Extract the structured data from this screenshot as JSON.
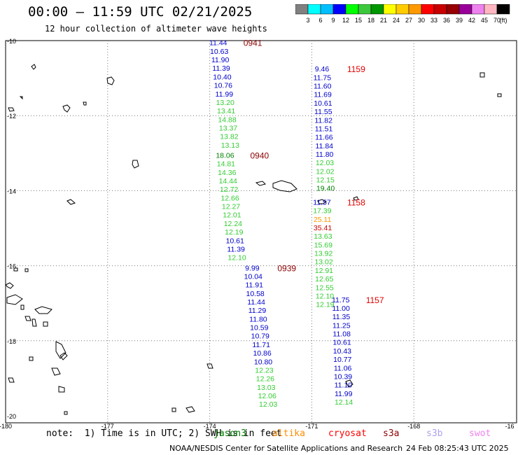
{
  "header": {
    "title": "00:00 – 11:59 UTC 02/21/2025",
    "subtitle": "12 hour collection of altimeter wave heights"
  },
  "colorbar": {
    "colors": [
      "#808080",
      "#00ffff",
      "#00bfff",
      "#0000ff",
      "#00ff00",
      "#3cc83c",
      "#009600",
      "#ffff00",
      "#ffcc00",
      "#ff9900",
      "#ff0000",
      "#c80000",
      "#960000",
      "#990099",
      "#ee82ee",
      "#ffb6c1",
      "#000000"
    ],
    "labels": [
      "3",
      "6",
      "9",
      "12",
      "15",
      "18",
      "21",
      "24",
      "27",
      "30",
      "33",
      "36",
      "39",
      "42",
      "45",
      "70",
      "(ft)"
    ]
  },
  "axes": {
    "lat_labels": [
      "-10",
      "-12",
      "-14",
      "-16",
      "-18",
      "-20"
    ],
    "lon_labels": [
      "-180",
      "-177",
      "-174",
      "-171",
      "-168",
      "-16"
    ]
  },
  "passes": [
    {
      "time": "0941",
      "color": "#8b0000",
      "lon": -173.75,
      "lat": -10.05,
      "values": [
        "11.44",
        "10.63",
        "11.90",
        "11.39",
        "10.40",
        "10.76",
        "11.99",
        "13.20",
        "13.41",
        "14.88",
        "13.37",
        "13.82",
        "13.13"
      ]
    },
    {
      "time": "0940",
      "color": "#8b0000",
      "lon": -173.55,
      "lat": -13.05,
      "values": [
        "18.06",
        "14.81",
        "14.36",
        "14.44",
        "12.72",
        "12.66",
        "12.27",
        "12.01",
        "12.24",
        "12.19",
        "10.61",
        "11.39",
        "12.10"
      ]
    },
    {
      "time": "0939",
      "color": "#8b0000",
      "lon": -172.75,
      "lat": -16.05,
      "values": [
        "9.99",
        "10.04",
        "11.91",
        "10.58",
        "11.44",
        "11.29",
        "11.80",
        "10.59",
        "10.79",
        "11.71",
        "10.86",
        "10.80",
        "12.23",
        "12.26",
        "13.03",
        "12.06",
        "12.03"
      ]
    },
    {
      "time": "1159",
      "color": "#e00000",
      "lon": -170.7,
      "lat": -10.75,
      "values": [
        "9.46",
        "11.75",
        "11.60",
        "11.69",
        "10.61",
        "11.55",
        "11.82",
        "11.51",
        "11.66",
        "11.84",
        "11.80",
        "12.03",
        "12.02",
        "12.15",
        "19.40"
      ]
    },
    {
      "time": "1158",
      "color": "#e00000",
      "lon": -170.7,
      "lat": -14.3,
      "values": [
        "11.57",
        "17.39",
        "25.11",
        "35.41",
        "13.63",
        "15.69",
        "13.92",
        "13.02",
        "12.91",
        "12.65",
        "12.55",
        "12.10",
        "12.19"
      ]
    },
    {
      "time": "1157",
      "color": "#e00000",
      "lon": -170.15,
      "lat": -16.9,
      "values": [
        "11.75",
        "11.00",
        "11.35",
        "11.25",
        "11.08",
        "10.61",
        "10.43",
        "10.77",
        "11.06",
        "10.39",
        "11.10",
        "11.99",
        "12.14"
      ]
    }
  ],
  "note": "note:  1) Time is in UTC; 2) SWH is in feet",
  "satellites": [
    {
      "name": "jason3",
      "color": "#008000"
    },
    {
      "name": "altika",
      "color": "#ff8c00"
    },
    {
      "name": "cryosat",
      "color": "#ff0000"
    },
    {
      "name": "s3a",
      "color": "#8b0000"
    },
    {
      "name": "s3b",
      "color": "#b0a0f0"
    },
    {
      "name": "swot",
      "color": "#ee82ee"
    }
  ],
  "footer": {
    "credit": "NOAA/NESDIS Center for Satellite Applications and Research",
    "timestamp": "24 Feb 08:25:43 UTC 2025"
  }
}
